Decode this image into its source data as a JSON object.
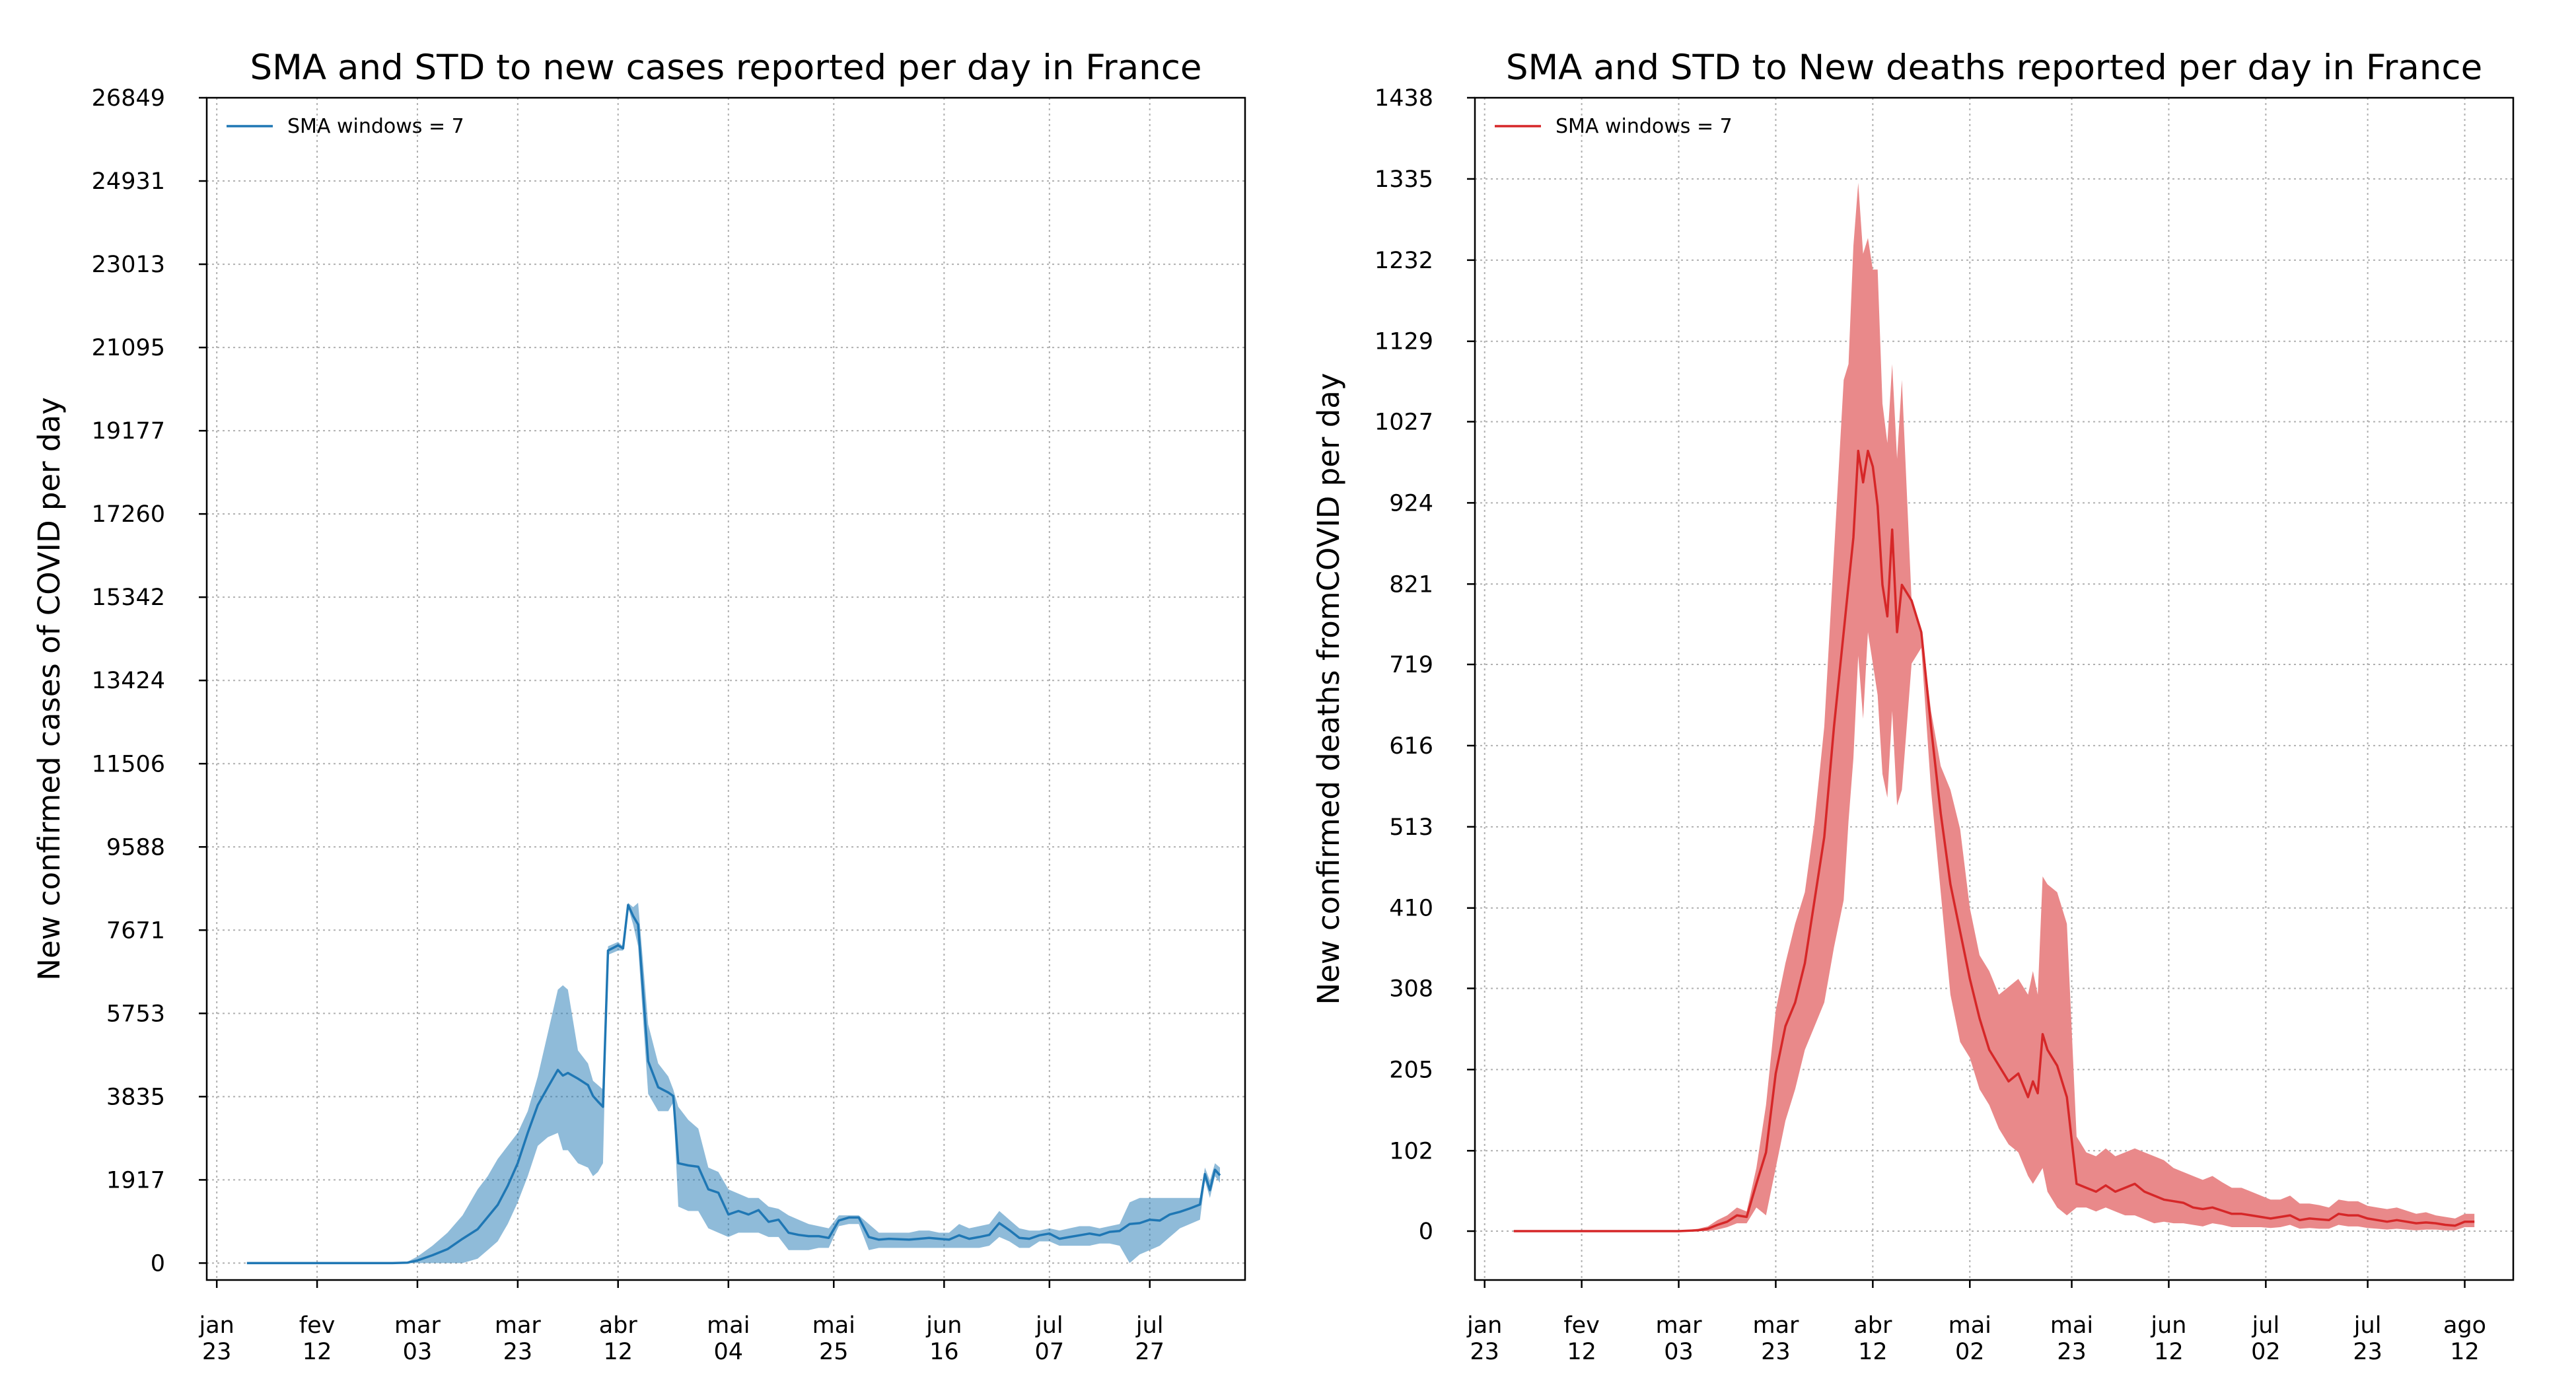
{
  "chart_data": [
    {
      "type": "line",
      "title": "SMA and STD to new cases reported per day in France",
      "ylabel": "New confirmed cases of COVID per day",
      "xlabel": "",
      "ylim": [
        -390,
        26849
      ],
      "xlim": [
        -2,
        205
      ],
      "yticks": [
        0,
        1917,
        3835,
        5753,
        7671,
        9588,
        11506,
        13424,
        15342,
        17260,
        19177,
        21095,
        23013,
        24931,
        26849
      ],
      "xticks": [
        {
          "day": 0,
          "line1": "jan",
          "line2": "23"
        },
        {
          "day": 20,
          "line1": "fev",
          "line2": "12"
        },
        {
          "day": 40,
          "line1": "mar",
          "line2": "03"
        },
        {
          "day": 60,
          "line1": "mar",
          "line2": "23"
        },
        {
          "day": 80,
          "line1": "abr",
          "line2": "12"
        },
        {
          "day": 102,
          "line1": "mai",
          "line2": "04"
        },
        {
          "day": 123,
          "line1": "mai",
          "line2": "25"
        },
        {
          "day": 145,
          "line1": "jun",
          "line2": "16"
        },
        {
          "day": 166,
          "line1": "jul",
          "line2": "07"
        },
        {
          "day": 186,
          "line1": "jul",
          "line2": "27"
        }
      ],
      "grid": true,
      "legend_position": "top-left",
      "series": [
        {
          "name": "SMA windows = 7",
          "color": "#1f77b4",
          "band_color": "#1f77b4",
          "x": [
            6,
            35,
            38,
            40,
            43,
            46,
            49,
            52,
            54,
            56,
            58,
            60,
            62,
            64,
            66,
            68,
            69,
            70,
            72,
            74,
            75,
            76,
            77,
            78,
            80,
            81,
            82,
            83,
            84,
            86,
            88,
            90,
            91,
            92,
            94,
            96,
            98,
            100,
            102,
            104,
            106,
            108,
            110,
            112,
            114,
            116,
            118,
            120,
            122,
            124,
            126,
            128,
            130,
            132,
            134,
            136,
            138,
            140,
            142,
            144,
            146,
            148,
            150,
            152,
            154,
            156,
            158,
            160,
            162,
            164,
            166,
            168,
            170,
            172,
            174,
            176,
            178,
            180,
            182,
            184,
            186,
            188,
            190,
            192,
            194,
            196,
            197,
            198,
            199,
            200
          ],
          "values": [
            0,
            0,
            10,
            60,
            180,
            320,
            560,
            780,
            1060,
            1340,
            1780,
            2300,
            3000,
            3640,
            4050,
            4450,
            4320,
            4380,
            4250,
            4100,
            3850,
            3720,
            3600,
            7200,
            7320,
            7250,
            8250,
            8000,
            7800,
            4650,
            4050,
            3930,
            3850,
            2300,
            2250,
            2220,
            1700,
            1620,
            1120,
            1200,
            1120,
            1220,
            950,
            1000,
            700,
            650,
            620,
            620,
            580,
            980,
            1050,
            1050,
            600,
            540,
            560,
            550,
            540,
            560,
            580,
            560,
            540,
            640,
            560,
            600,
            650,
            920,
            760,
            580,
            560,
            640,
            680,
            560,
            600,
            640,
            680,
            640,
            720,
            740,
            900,
            920,
            1000,
            980,
            1120,
            1180,
            1260,
            1350,
            2050,
            1680,
            2150,
            2020
          ],
          "upper": [
            0,
            0,
            30,
            150,
            400,
            700,
            1100,
            1700,
            2000,
            2400,
            2700,
            3000,
            3500,
            4300,
            5300,
            6300,
            6400,
            6300,
            4900,
            4600,
            4200,
            4100,
            4000,
            7300,
            7400,
            7300,
            8300,
            8200,
            8300,
            5500,
            4600,
            4300,
            4000,
            3600,
            3300,
            3100,
            2200,
            2100,
            1700,
            1600,
            1500,
            1500,
            1300,
            1250,
            1100,
            1000,
            900,
            850,
            800,
            1100,
            1100,
            1100,
            900,
            700,
            700,
            700,
            700,
            750,
            750,
            700,
            700,
            900,
            800,
            850,
            900,
            1200,
            1000,
            800,
            750,
            750,
            800,
            750,
            800,
            850,
            850,
            800,
            850,
            900,
            1400,
            1500,
            1500,
            1500,
            1500,
            1500,
            1500,
            1500,
            2200,
            1900,
            2300,
            2200
          ],
          "lower": [
            0,
            0,
            0,
            0,
            0,
            0,
            0,
            100,
            300,
            500,
            900,
            1400,
            2000,
            2700,
            2900,
            3000,
            2600,
            2600,
            2300,
            2200,
            2000,
            2100,
            2300,
            7100,
            7200,
            7200,
            8200,
            7800,
            7300,
            3900,
            3500,
            3500,
            3700,
            1300,
            1200,
            1200,
            800,
            700,
            600,
            700,
            700,
            700,
            600,
            600,
            300,
            300,
            300,
            350,
            350,
            850,
            900,
            900,
            300,
            350,
            350,
            350,
            350,
            350,
            350,
            350,
            350,
            350,
            350,
            350,
            400,
            600,
            500,
            350,
            350,
            500,
            500,
            400,
            400,
            400,
            400,
            450,
            450,
            400,
            0,
            200,
            300,
            400,
            600,
            800,
            900,
            1000,
            1900,
            1500,
            2000,
            1850
          ]
        }
      ]
    },
    {
      "type": "line",
      "title": "SMA and STD to New deaths reported per day in France",
      "ylabel": "New confirmed deaths fromCOVID per day",
      "xlabel": "",
      "ylim": [
        -62,
        1438
      ],
      "xlim": [
        -2,
        212
      ],
      "yticks": [
        0,
        102,
        205,
        308,
        410,
        513,
        616,
        719,
        821,
        924,
        1027,
        1129,
        1232,
        1335,
        1438
      ],
      "xticks": [
        {
          "day": 0,
          "line1": "jan",
          "line2": "23"
        },
        {
          "day": 20,
          "line1": "fev",
          "line2": "12"
        },
        {
          "day": 40,
          "line1": "mar",
          "line2": "03"
        },
        {
          "day": 60,
          "line1": "mar",
          "line2": "23"
        },
        {
          "day": 80,
          "line1": "abr",
          "line2": "12"
        },
        {
          "day": 100,
          "line1": "mai",
          "line2": "02"
        },
        {
          "day": 121,
          "line1": "mai",
          "line2": "23"
        },
        {
          "day": 141,
          "line1": "jun",
          "line2": "12"
        },
        {
          "day": 161,
          "line1": "jul",
          "line2": "02"
        },
        {
          "day": 182,
          "line1": "jul",
          "line2": "23"
        },
        {
          "day": 202,
          "line1": "ago",
          "line2": "12"
        }
      ],
      "grid": true,
      "legend_position": "top-left",
      "series": [
        {
          "name": "SMA windows = 7",
          "color": "#d62728",
          "band_color": "#e9898a",
          "x": [
            6,
            40,
            44,
            46,
            48,
            50,
            52,
            54,
            56,
            58,
            60,
            62,
            64,
            66,
            68,
            70,
            72,
            74,
            75,
            76,
            77,
            78,
            79,
            80,
            81,
            82,
            83,
            84,
            85,
            86,
            88,
            90,
            92,
            94,
            96,
            98,
            100,
            102,
            104,
            106,
            108,
            110,
            112,
            113,
            114,
            115,
            116,
            118,
            120,
            122,
            124,
            126,
            128,
            130,
            132,
            134,
            136,
            138,
            140,
            142,
            144,
            146,
            148,
            150,
            152,
            154,
            156,
            158,
            160,
            162,
            164,
            166,
            168,
            170,
            172,
            174,
            176,
            178,
            180,
            182,
            184,
            186,
            188,
            190,
            192,
            194,
            196,
            198,
            200,
            202,
            204
          ],
          "values": [
            0,
            0,
            1,
            3,
            8,
            12,
            20,
            18,
            60,
            100,
            200,
            260,
            290,
            340,
            420,
            500,
            640,
            760,
            820,
            880,
            990,
            950,
            990,
            970,
            920,
            820,
            780,
            890,
            760,
            820,
            800,
            760,
            640,
            530,
            440,
            380,
            320,
            270,
            230,
            210,
            190,
            200,
            170,
            190,
            175,
            250,
            230,
            210,
            170,
            60,
            55,
            50,
            58,
            50,
            55,
            60,
            50,
            45,
            40,
            38,
            36,
            30,
            28,
            30,
            26,
            22,
            22,
            20,
            18,
            16,
            18,
            20,
            14,
            16,
            15,
            14,
            22,
            20,
            20,
            16,
            14,
            12,
            14,
            12,
            10,
            11,
            10,
            8,
            7,
            12,
            12
          ],
          "upper": [
            0,
            0,
            3,
            6,
            14,
            20,
            30,
            25,
            80,
            160,
            280,
            340,
            390,
            430,
            520,
            640,
            860,
            1080,
            1100,
            1250,
            1330,
            1240,
            1260,
            1220,
            1220,
            1050,
            1000,
            1100,
            980,
            1080,
            800,
            760,
            660,
            590,
            560,
            510,
            410,
            350,
            330,
            300,
            310,
            320,
            300,
            330,
            300,
            450,
            440,
            430,
            390,
            120,
            100,
            95,
            105,
            95,
            100,
            105,
            100,
            95,
            90,
            80,
            75,
            70,
            65,
            70,
            62,
            55,
            55,
            50,
            45,
            40,
            40,
            45,
            35,
            35,
            33,
            30,
            40,
            38,
            38,
            32,
            30,
            28,
            30,
            26,
            22,
            24,
            20,
            18,
            16,
            22,
            22
          ],
          "lower": [
            0,
            0,
            0,
            0,
            2,
            5,
            10,
            10,
            30,
            20,
            80,
            140,
            180,
            230,
            260,
            290,
            360,
            420,
            520,
            600,
            730,
            650,
            760,
            720,
            680,
            580,
            550,
            660,
            540,
            560,
            720,
            740,
            560,
            430,
            300,
            240,
            220,
            180,
            160,
            130,
            110,
            100,
            70,
            60,
            70,
            80,
            50,
            30,
            20,
            30,
            30,
            25,
            30,
            25,
            20,
            20,
            15,
            10,
            12,
            10,
            10,
            8,
            6,
            10,
            8,
            5,
            5,
            5,
            5,
            4,
            5,
            8,
            3,
            4,
            3,
            3,
            8,
            6,
            6,
            4,
            3,
            2,
            3,
            2,
            1,
            2,
            2,
            1,
            1,
            5,
            5
          ]
        }
      ]
    }
  ]
}
